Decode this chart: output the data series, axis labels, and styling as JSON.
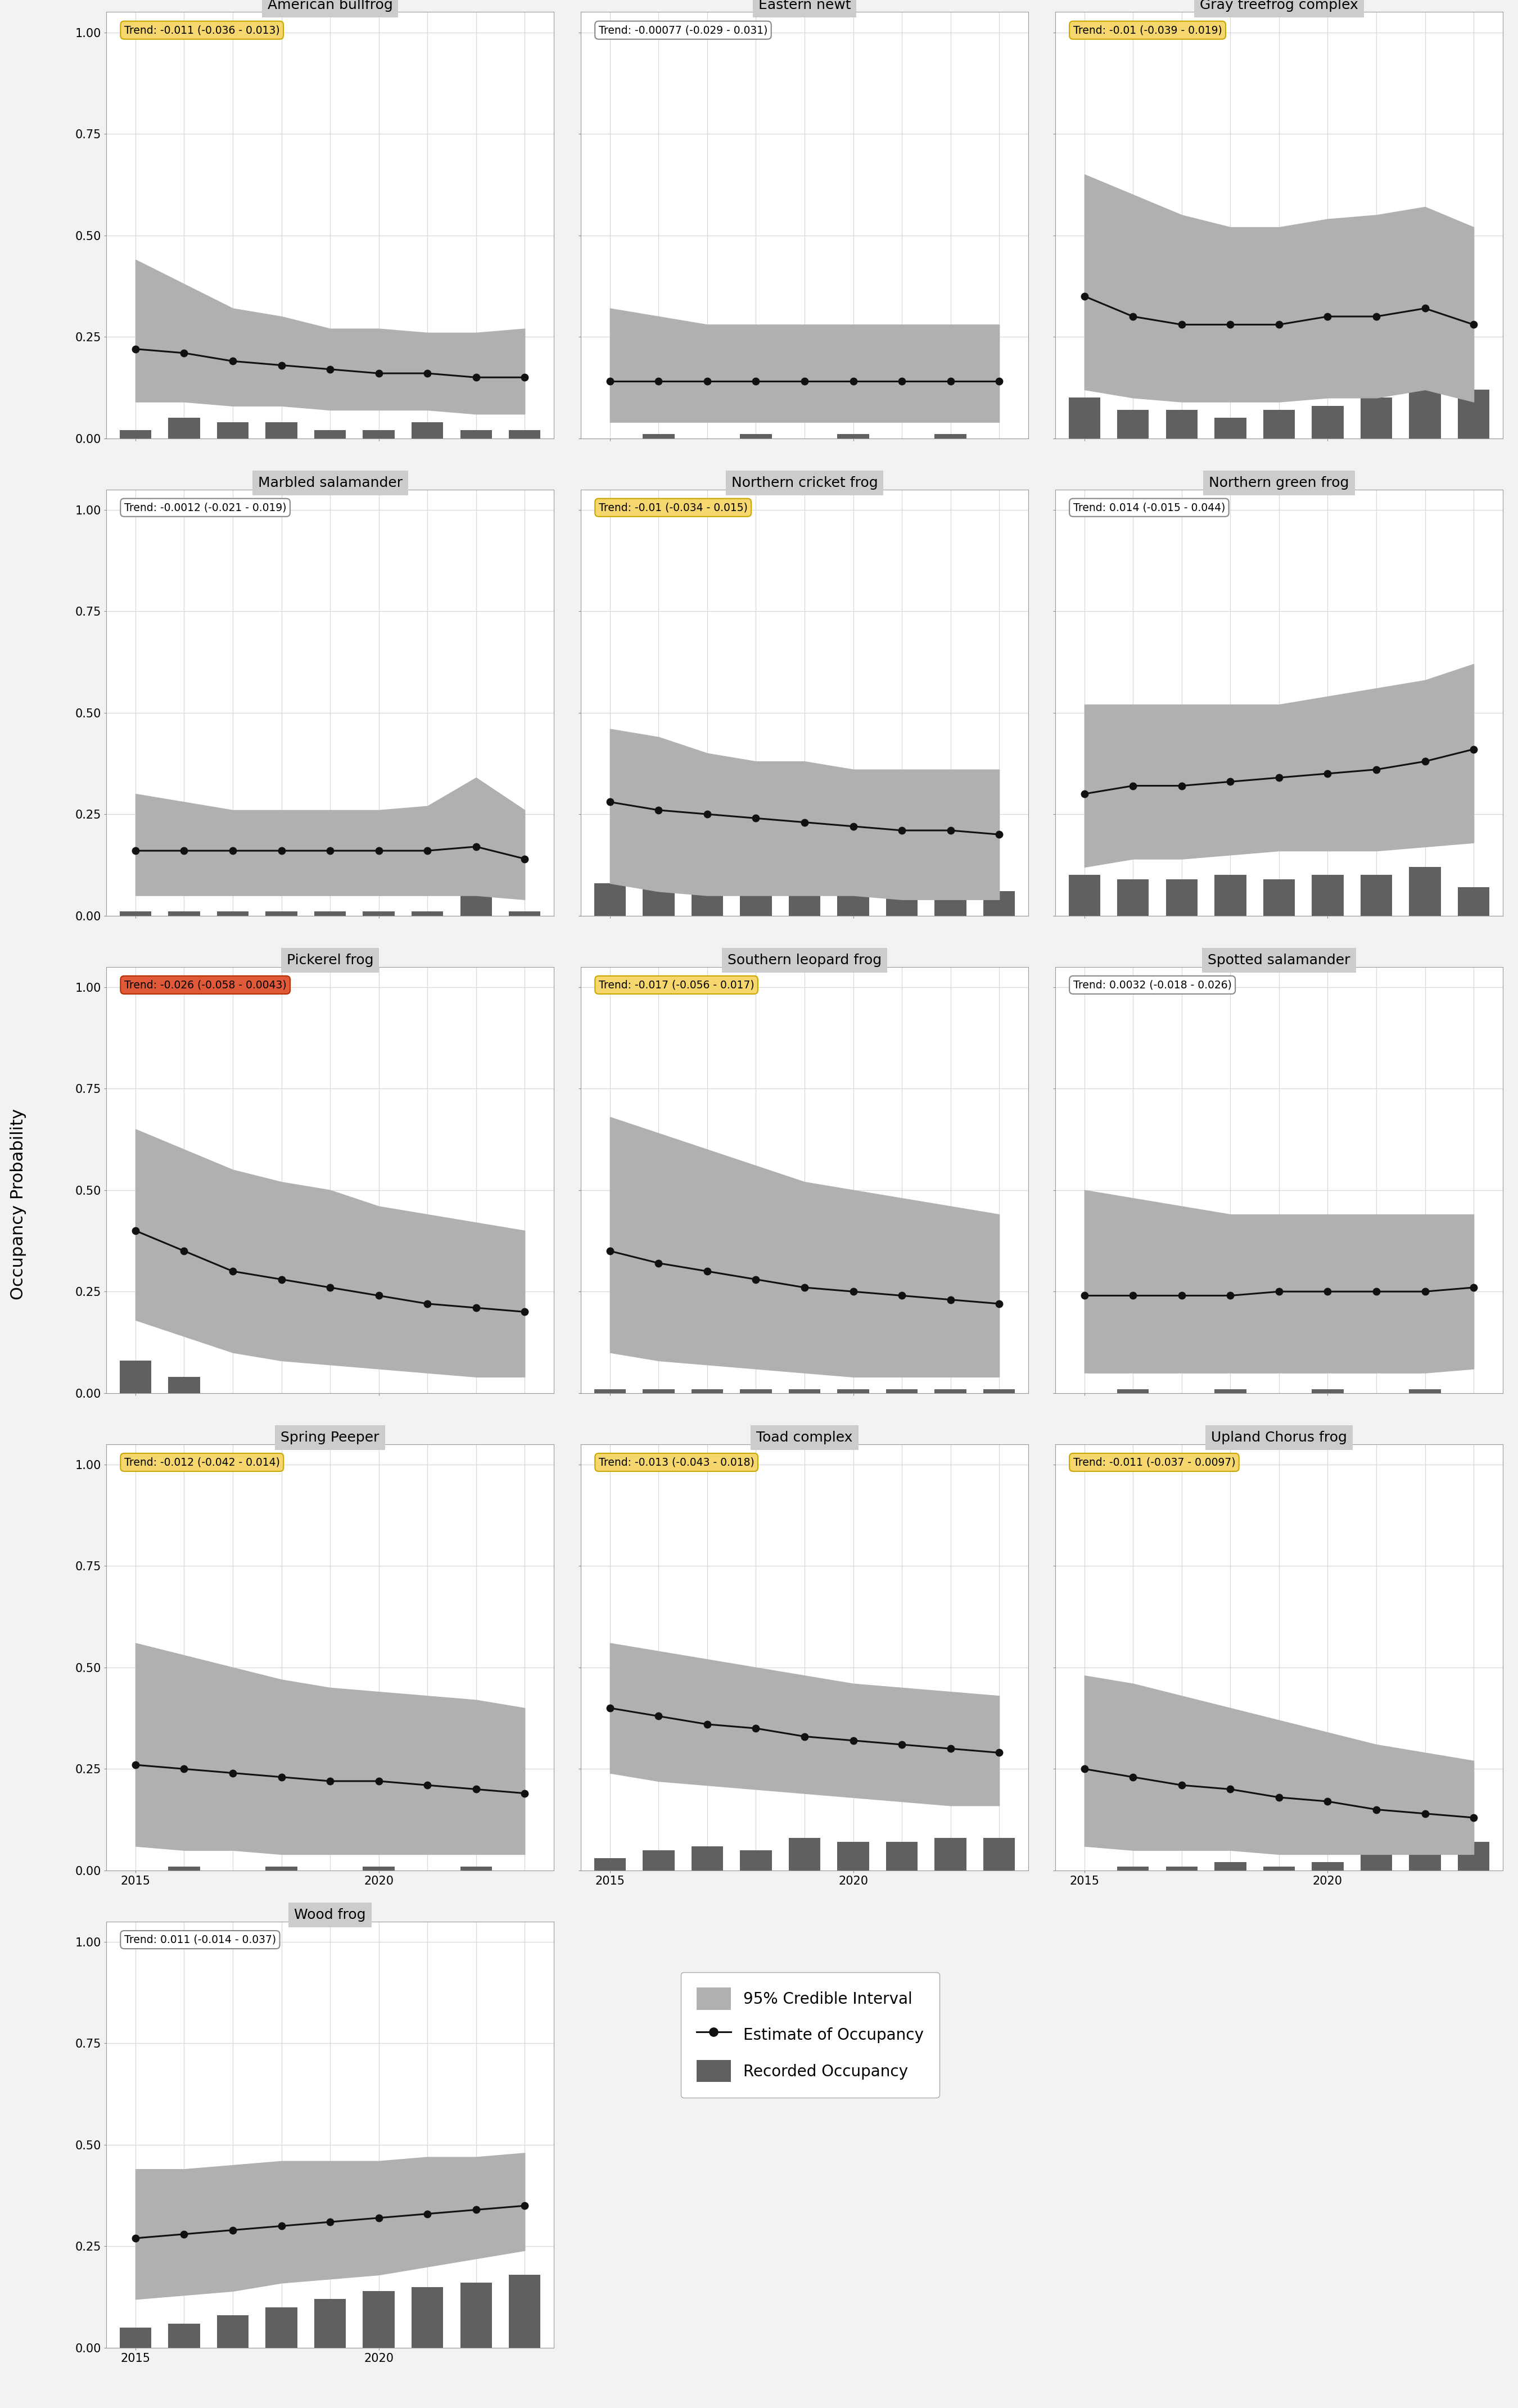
{
  "years": [
    2015,
    2016,
    2017,
    2018,
    2019,
    2020,
    2021,
    2022,
    2023
  ],
  "species": [
    {
      "name": "American bullfrog",
      "trend_text": "Trend: -0.011 (-0.036 - 0.013)",
      "trend_color": "#f5d76e",
      "trend_border": "#c8a800",
      "occupancy": [
        0.22,
        0.21,
        0.19,
        0.18,
        0.17,
        0.16,
        0.16,
        0.15,
        0.15
      ],
      "ci_upper": [
        0.44,
        0.38,
        0.32,
        0.3,
        0.27,
        0.27,
        0.26,
        0.26,
        0.27
      ],
      "ci_lower": [
        0.09,
        0.09,
        0.08,
        0.08,
        0.07,
        0.07,
        0.07,
        0.06,
        0.06
      ],
      "bars": [
        0.02,
        0.05,
        0.04,
        0.04,
        0.02,
        0.02,
        0.04,
        0.02,
        0.02
      ]
    },
    {
      "name": "Eastern newt",
      "trend_text": "Trend: -0.00077 (-0.029 - 0.031)",
      "trend_color": "#ffffff",
      "trend_border": "#888888",
      "occupancy": [
        0.14,
        0.14,
        0.14,
        0.14,
        0.14,
        0.14,
        0.14,
        0.14,
        0.14
      ],
      "ci_upper": [
        0.32,
        0.3,
        0.28,
        0.28,
        0.28,
        0.28,
        0.28,
        0.28,
        0.28
      ],
      "ci_lower": [
        0.04,
        0.04,
        0.04,
        0.04,
        0.04,
        0.04,
        0.04,
        0.04,
        0.04
      ],
      "bars": [
        0.0,
        0.01,
        0.0,
        0.01,
        0.0,
        0.01,
        0.0,
        0.01,
        0.0
      ]
    },
    {
      "name": "Gray treefrog complex",
      "trend_text": "Trend: -0.01 (-0.039 - 0.019)",
      "trend_color": "#f5d76e",
      "trend_border": "#c8a800",
      "occupancy": [
        0.35,
        0.3,
        0.28,
        0.28,
        0.28,
        0.3,
        0.3,
        0.32,
        0.28
      ],
      "ci_upper": [
        0.65,
        0.6,
        0.55,
        0.52,
        0.52,
        0.54,
        0.55,
        0.57,
        0.52
      ],
      "ci_lower": [
        0.12,
        0.1,
        0.09,
        0.09,
        0.09,
        0.1,
        0.1,
        0.12,
        0.09
      ],
      "bars": [
        0.1,
        0.07,
        0.07,
        0.05,
        0.07,
        0.08,
        0.1,
        0.12,
        0.12
      ]
    },
    {
      "name": "Marbled salamander",
      "trend_text": "Trend: -0.0012 (-0.021 - 0.019)",
      "trend_color": "#ffffff",
      "trend_border": "#888888",
      "occupancy": [
        0.16,
        0.16,
        0.16,
        0.16,
        0.16,
        0.16,
        0.16,
        0.17,
        0.14
      ],
      "ci_upper": [
        0.3,
        0.28,
        0.26,
        0.26,
        0.26,
        0.26,
        0.27,
        0.34,
        0.26
      ],
      "ci_lower": [
        0.05,
        0.05,
        0.05,
        0.05,
        0.05,
        0.05,
        0.05,
        0.05,
        0.04
      ],
      "bars": [
        0.01,
        0.01,
        0.01,
        0.01,
        0.01,
        0.01,
        0.01,
        0.07,
        0.01
      ]
    },
    {
      "name": "Northern cricket frog",
      "trend_text": "Trend: -0.01 (-0.034 - 0.015)",
      "trend_color": "#f5d76e",
      "trend_border": "#c8a800",
      "occupancy": [
        0.28,
        0.26,
        0.25,
        0.24,
        0.23,
        0.22,
        0.21,
        0.21,
        0.2
      ],
      "ci_upper": [
        0.46,
        0.44,
        0.4,
        0.38,
        0.38,
        0.36,
        0.36,
        0.36,
        0.36
      ],
      "ci_lower": [
        0.08,
        0.06,
        0.05,
        0.05,
        0.05,
        0.05,
        0.04,
        0.04,
        0.04
      ],
      "bars": [
        0.08,
        0.1,
        0.1,
        0.1,
        0.08,
        0.08,
        0.07,
        0.06,
        0.06
      ]
    },
    {
      "name": "Northern green frog",
      "trend_text": "Trend: 0.014 (-0.015 - 0.044)",
      "trend_color": "#ffffff",
      "trend_border": "#888888",
      "occupancy": [
        0.3,
        0.32,
        0.32,
        0.33,
        0.34,
        0.35,
        0.36,
        0.38,
        0.41
      ],
      "ci_upper": [
        0.52,
        0.52,
        0.52,
        0.52,
        0.52,
        0.54,
        0.56,
        0.58,
        0.62
      ],
      "ci_lower": [
        0.12,
        0.14,
        0.14,
        0.15,
        0.16,
        0.16,
        0.16,
        0.17,
        0.18
      ],
      "bars": [
        0.1,
        0.09,
        0.09,
        0.1,
        0.09,
        0.1,
        0.1,
        0.12,
        0.07
      ]
    },
    {
      "name": "Pickerel frog",
      "trend_text": "Trend: -0.026 (-0.058 - 0.0043)",
      "trend_color": "#e05a3a",
      "trend_border": "#b03000",
      "occupancy": [
        0.4,
        0.35,
        0.3,
        0.28,
        0.26,
        0.24,
        0.22,
        0.21,
        0.2
      ],
      "ci_upper": [
        0.65,
        0.6,
        0.55,
        0.52,
        0.5,
        0.46,
        0.44,
        0.42,
        0.4
      ],
      "ci_lower": [
        0.18,
        0.14,
        0.1,
        0.08,
        0.07,
        0.06,
        0.05,
        0.04,
        0.04
      ],
      "bars": [
        0.08,
        0.04,
        0.0,
        0.0,
        0.0,
        0.0,
        0.0,
        0.0,
        0.0
      ]
    },
    {
      "name": "Southern leopard frog",
      "trend_text": "Trend: -0.017 (-0.056 - 0.017)",
      "trend_color": "#f5d76e",
      "trend_border": "#c8a800",
      "occupancy": [
        0.35,
        0.32,
        0.3,
        0.28,
        0.26,
        0.25,
        0.24,
        0.23,
        0.22
      ],
      "ci_upper": [
        0.68,
        0.64,
        0.6,
        0.56,
        0.52,
        0.5,
        0.48,
        0.46,
        0.44
      ],
      "ci_lower": [
        0.1,
        0.08,
        0.07,
        0.06,
        0.05,
        0.04,
        0.04,
        0.04,
        0.04
      ],
      "bars": [
        0.01,
        0.01,
        0.01,
        0.01,
        0.01,
        0.01,
        0.01,
        0.01,
        0.01
      ]
    },
    {
      "name": "Spotted salamander",
      "trend_text": "Trend: 0.0032 (-0.018 - 0.026)",
      "trend_color": "#ffffff",
      "trend_border": "#888888",
      "occupancy": [
        0.24,
        0.24,
        0.24,
        0.24,
        0.25,
        0.25,
        0.25,
        0.25,
        0.26
      ],
      "ci_upper": [
        0.5,
        0.48,
        0.46,
        0.44,
        0.44,
        0.44,
        0.44,
        0.44,
        0.44
      ],
      "ci_lower": [
        0.05,
        0.05,
        0.05,
        0.05,
        0.05,
        0.05,
        0.05,
        0.05,
        0.06
      ],
      "bars": [
        0.0,
        0.01,
        0.0,
        0.01,
        0.0,
        0.01,
        0.0,
        0.01,
        0.0
      ]
    },
    {
      "name": "Spring Peeper",
      "trend_text": "Trend: -0.012 (-0.042 - 0.014)",
      "trend_color": "#f5d76e",
      "trend_border": "#c8a800",
      "occupancy": [
        0.26,
        0.25,
        0.24,
        0.23,
        0.22,
        0.22,
        0.21,
        0.2,
        0.19
      ],
      "ci_upper": [
        0.56,
        0.53,
        0.5,
        0.47,
        0.45,
        0.44,
        0.43,
        0.42,
        0.4
      ],
      "ci_lower": [
        0.06,
        0.05,
        0.05,
        0.04,
        0.04,
        0.04,
        0.04,
        0.04,
        0.04
      ],
      "bars": [
        0.0,
        0.01,
        0.0,
        0.01,
        0.0,
        0.01,
        0.0,
        0.01,
        0.0
      ]
    },
    {
      "name": "Toad complex",
      "trend_text": "Trend: -0.013 (-0.043 - 0.018)",
      "trend_color": "#f5d76e",
      "trend_border": "#c8a800",
      "occupancy": [
        0.4,
        0.38,
        0.36,
        0.35,
        0.33,
        0.32,
        0.31,
        0.3,
        0.29
      ],
      "ci_upper": [
        0.56,
        0.54,
        0.52,
        0.5,
        0.48,
        0.46,
        0.45,
        0.44,
        0.43
      ],
      "ci_lower": [
        0.24,
        0.22,
        0.21,
        0.2,
        0.19,
        0.18,
        0.17,
        0.16,
        0.16
      ],
      "bars": [
        0.03,
        0.05,
        0.06,
        0.05,
        0.08,
        0.07,
        0.07,
        0.08,
        0.08
      ]
    },
    {
      "name": "Upland Chorus frog",
      "trend_text": "Trend: -0.011 (-0.037 - 0.0097)",
      "trend_color": "#f5d76e",
      "trend_border": "#c8a800",
      "occupancy": [
        0.25,
        0.23,
        0.21,
        0.2,
        0.18,
        0.17,
        0.15,
        0.14,
        0.13
      ],
      "ci_upper": [
        0.48,
        0.46,
        0.43,
        0.4,
        0.37,
        0.34,
        0.31,
        0.29,
        0.27
      ],
      "ci_lower": [
        0.06,
        0.05,
        0.05,
        0.05,
        0.04,
        0.04,
        0.04,
        0.04,
        0.04
      ],
      "bars": [
        0.0,
        0.01,
        0.01,
        0.02,
        0.01,
        0.02,
        0.04,
        0.07,
        0.07
      ]
    },
    {
      "name": "Wood frog",
      "trend_text": "Trend: 0.011 (-0.014 - 0.037)",
      "trend_color": "#ffffff",
      "trend_border": "#888888",
      "occupancy": [
        0.27,
        0.28,
        0.29,
        0.3,
        0.31,
        0.32,
        0.33,
        0.34,
        0.35
      ],
      "ci_upper": [
        0.44,
        0.44,
        0.45,
        0.46,
        0.46,
        0.46,
        0.47,
        0.47,
        0.48
      ],
      "ci_lower": [
        0.12,
        0.13,
        0.14,
        0.16,
        0.17,
        0.18,
        0.2,
        0.22,
        0.24
      ],
      "bars": [
        0.05,
        0.06,
        0.08,
        0.1,
        0.12,
        0.14,
        0.15,
        0.16,
        0.18
      ]
    }
  ],
  "ylabel": "Occupancy Probability",
  "ylim": [
    0.0,
    1.05
  ],
  "ytick_vals": [
    0.0,
    0.25,
    0.5,
    0.75,
    1.0
  ],
  "ytick_labels": [
    "0.00",
    "0.25",
    "0.50",
    "0.75",
    "1.00"
  ],
  "xticks": [
    2015,
    2020
  ],
  "bar_color": "#606060",
  "ci_color": "#b0b0b0",
  "line_color": "#111111",
  "bg_color": "#ffffff",
  "title_bg": "#cccccc",
  "grid_color": "#d8d8d8",
  "outer_bg": "#f2f2f2"
}
